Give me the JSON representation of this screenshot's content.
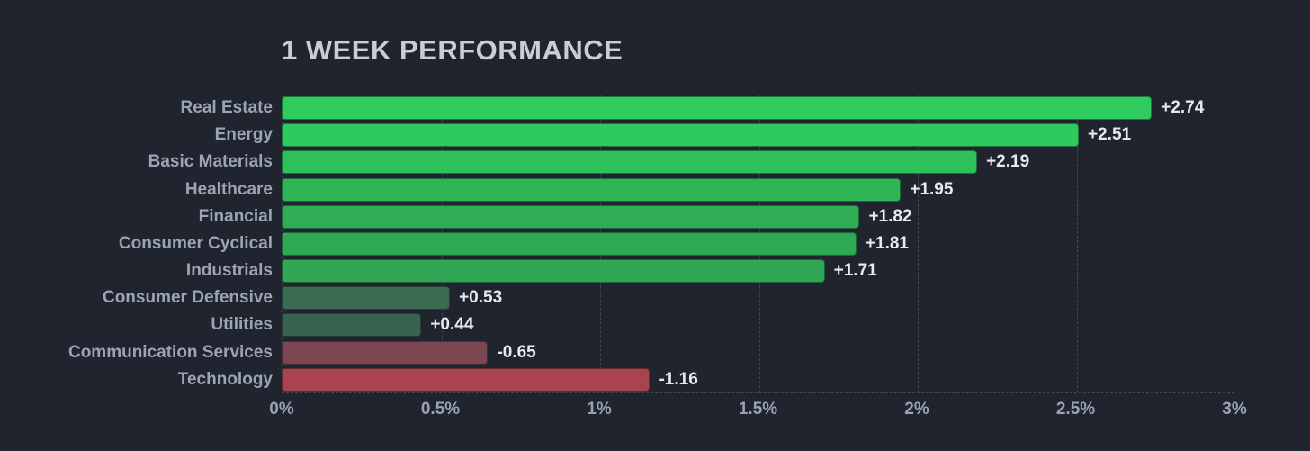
{
  "title": "1 WEEK PERFORMANCE",
  "colors": {
    "background": "#20242e",
    "grid": "#414855",
    "title_text": "#c9ced6",
    "category_text": "#9aa4b3",
    "value_text": "#e7e9ee",
    "positive_strong": "#2ecc5e",
    "positive_weak": "#3c6a53",
    "negative_weak": "#7c4750",
    "negative_strong": "#a9434e"
  },
  "chart_data": {
    "type": "bar",
    "orientation": "horizontal",
    "title": "1 WEEK PERFORMANCE",
    "xlabel": "",
    "ylabel": "",
    "xlim": [
      0,
      3
    ],
    "grid": "dashed-vertical",
    "legend": "none",
    "bar_length_encodes": "absolute value of percent change",
    "categories": [
      "Real Estate",
      "Energy",
      "Basic Materials",
      "Healthcare",
      "Financial",
      "Consumer Cyclical",
      "Industrials",
      "Consumer Defensive",
      "Utilities",
      "Communication Services",
      "Technology"
    ],
    "values": [
      2.74,
      2.51,
      2.19,
      1.95,
      1.82,
      1.81,
      1.71,
      0.53,
      0.44,
      -0.65,
      -1.16
    ],
    "value_labels": [
      "+2.74",
      "+2.51",
      "+2.19",
      "+1.95",
      "+1.82",
      "+1.81",
      "+1.71",
      "+0.53",
      "+0.44",
      "-0.65",
      "-1.16"
    ],
    "bar_colors": [
      "#2ecc5e",
      "#2eca5d",
      "#2ec159",
      "#2fb457",
      "#30ac55",
      "#2fa954",
      "#31a654",
      "#3c6b53",
      "#3a634f",
      "#7c4750",
      "#a9434e"
    ],
    "xticks": [
      0,
      0.5,
      1,
      1.5,
      2,
      2.5,
      3
    ],
    "xtick_labels": [
      "0%",
      "0.5%",
      "1%",
      "1.5%",
      "2%",
      "2.5%",
      "3%"
    ]
  }
}
